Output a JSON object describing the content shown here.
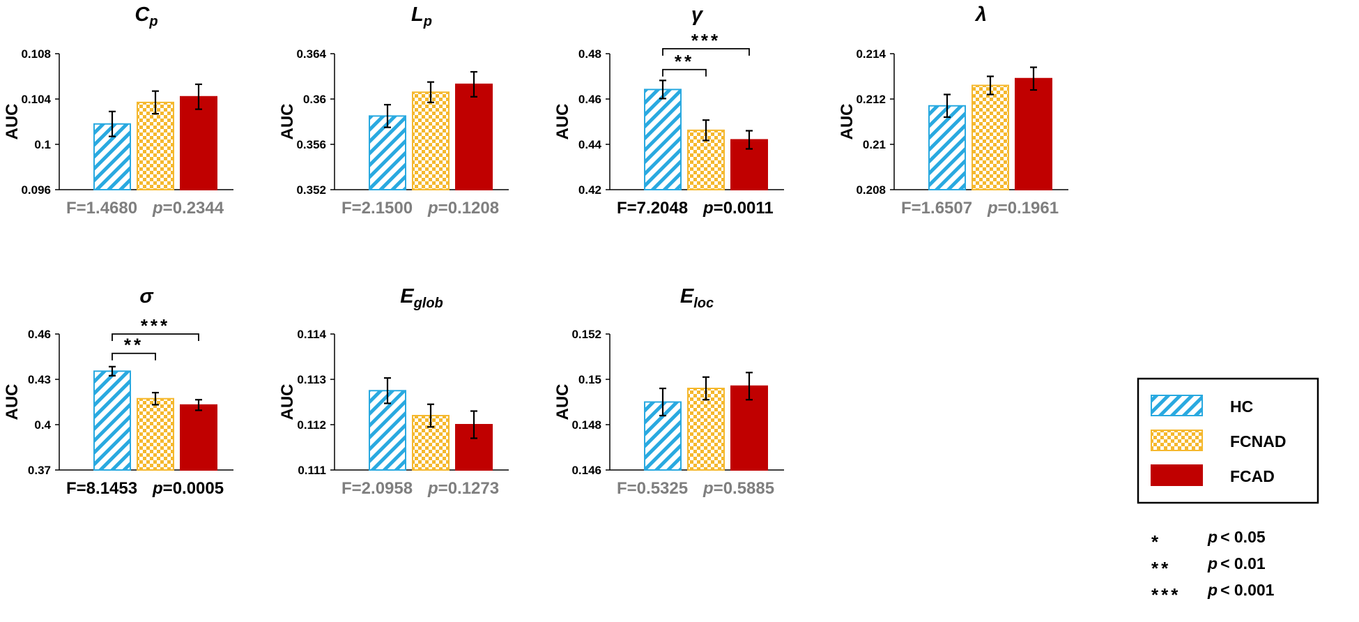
{
  "legend": {
    "items": [
      {
        "label": "HC",
        "pattern": "hatch",
        "color": "#29a9e0"
      },
      {
        "label": "FCNAD",
        "pattern": "checker",
        "color": "#f5b82e"
      },
      {
        "label": "FCAD",
        "pattern": "solid",
        "color": "#c00000"
      }
    ]
  },
  "significance_key": [
    {
      "stars": "*",
      "label": "p < 0.05"
    },
    {
      "stars": "**",
      "label": "p < 0.01"
    },
    {
      "stars": "***",
      "label": "p < 0.001"
    }
  ],
  "colors": {
    "hc": "#29a9e0",
    "fcnad": "#f5b82e",
    "fcad": "#c00000",
    "stat_nonsig": "#7f7f7f",
    "stat_sig": "#000000"
  },
  "chart_data": [
    {
      "type": "bar",
      "title_main": "C",
      "title_sub": "p",
      "ylabel": "AUC",
      "categories": [
        "HC",
        "FCNAD",
        "FCAD"
      ],
      "values": [
        0.1018,
        0.1037,
        0.1042
      ],
      "errors": [
        0.0011,
        0.001,
        0.0011
      ],
      "ylim": [
        0.096,
        0.108
      ],
      "yticks": [
        "0.096",
        "0.1",
        "0.104",
        "0.108"
      ],
      "stat": {
        "F": "F=1.4680",
        "p_label": "p",
        "p_value": "=0.2344",
        "significant": false
      },
      "brackets": []
    },
    {
      "type": "bar",
      "title_main": "L",
      "title_sub": "p",
      "ylabel": "AUC",
      "categories": [
        "HC",
        "FCNAD",
        "FCAD"
      ],
      "values": [
        0.3585,
        0.3606,
        0.3613
      ],
      "errors": [
        0.001,
        0.0009,
        0.0011
      ],
      "ylim": [
        0.352,
        0.364
      ],
      "yticks": [
        "0.352",
        "0.356",
        "0.36",
        "0.364"
      ],
      "stat": {
        "F": "F=2.1500",
        "p_label": "p",
        "p_value": "=0.1208",
        "significant": false
      },
      "brackets": []
    },
    {
      "type": "bar",
      "title_main": "γ",
      "title_sub": "",
      "ylabel": "AUC",
      "categories": [
        "HC",
        "FCNAD",
        "FCAD"
      ],
      "values": [
        0.4642,
        0.4462,
        0.442
      ],
      "errors": [
        0.004,
        0.0045,
        0.004
      ],
      "ylim": [
        0.42,
        0.48
      ],
      "yticks": [
        "0.42",
        "0.44",
        "0.46",
        "0.48"
      ],
      "stat": {
        "F": "F=7.2048",
        "p_label": "p",
        "p_value": "=0.0011",
        "significant": true
      },
      "brackets": [
        {
          "from": 0,
          "to": 1,
          "stars": "**",
          "level": 0.473
        },
        {
          "from": 0,
          "to": 2,
          "stars": "***",
          "level": 0.4822
        }
      ]
    },
    {
      "type": "bar",
      "title_main": "λ",
      "title_sub": "",
      "ylabel": "AUC",
      "categories": [
        "HC",
        "FCNAD",
        "FCAD"
      ],
      "values": [
        0.2117,
        0.2126,
        0.2129
      ],
      "errors": [
        0.0005,
        0.0004,
        0.0005
      ],
      "ylim": [
        0.208,
        0.214
      ],
      "yticks": [
        "0.208",
        "0.21",
        "0.212",
        "0.214"
      ],
      "stat": {
        "F": "F=1.6507",
        "p_label": "p",
        "p_value": "=0.1961",
        "significant": false
      },
      "brackets": []
    },
    {
      "type": "bar",
      "title_main": "σ",
      "title_sub": "",
      "ylabel": "AUC",
      "categories": [
        "HC",
        "FCNAD",
        "FCAD"
      ],
      "values": [
        0.4354,
        0.4172,
        0.413
      ],
      "errors": [
        0.003,
        0.004,
        0.0035
      ],
      "ylim": [
        0.37,
        0.46
      ],
      "yticks": [
        "0.37",
        "0.4",
        "0.43",
        "0.46"
      ],
      "stat": {
        "F": "F=8.1453",
        "p_label": "p",
        "p_value": "=0.0005",
        "significant": true
      },
      "brackets": [
        {
          "from": 0,
          "to": 1,
          "stars": "**",
          "level": 0.4472
        },
        {
          "from": 0,
          "to": 2,
          "stars": "***",
          "level": 0.46
        }
      ]
    },
    {
      "type": "bar",
      "title_main": "E",
      "title_sub": "glob",
      "ylabel": "AUC",
      "categories": [
        "HC",
        "FCNAD",
        "FCAD"
      ],
      "values": [
        0.11275,
        0.1122,
        0.112
      ],
      "errors": [
        0.00028,
        0.00025,
        0.0003
      ],
      "ylim": [
        0.111,
        0.114
      ],
      "yticks": [
        "0.111",
        "0.112",
        "0.113",
        "0.114"
      ],
      "stat": {
        "F": "F=2.0958",
        "p_label": "p",
        "p_value": "=0.1273",
        "significant": false
      },
      "brackets": []
    },
    {
      "type": "bar",
      "title_main": "E",
      "title_sub": "loc",
      "ylabel": "AUC",
      "categories": [
        "HC",
        "FCNAD",
        "FCAD"
      ],
      "values": [
        0.149,
        0.1496,
        0.1497
      ],
      "errors": [
        0.0006,
        0.0005,
        0.0006
      ],
      "ylim": [
        0.146,
        0.152
      ],
      "yticks": [
        "0.146",
        "0.148",
        "0.15",
        "0.152"
      ],
      "stat": {
        "F": "F=0.5325",
        "p_label": "p",
        "p_value": "=0.5885",
        "significant": false
      },
      "brackets": []
    }
  ]
}
